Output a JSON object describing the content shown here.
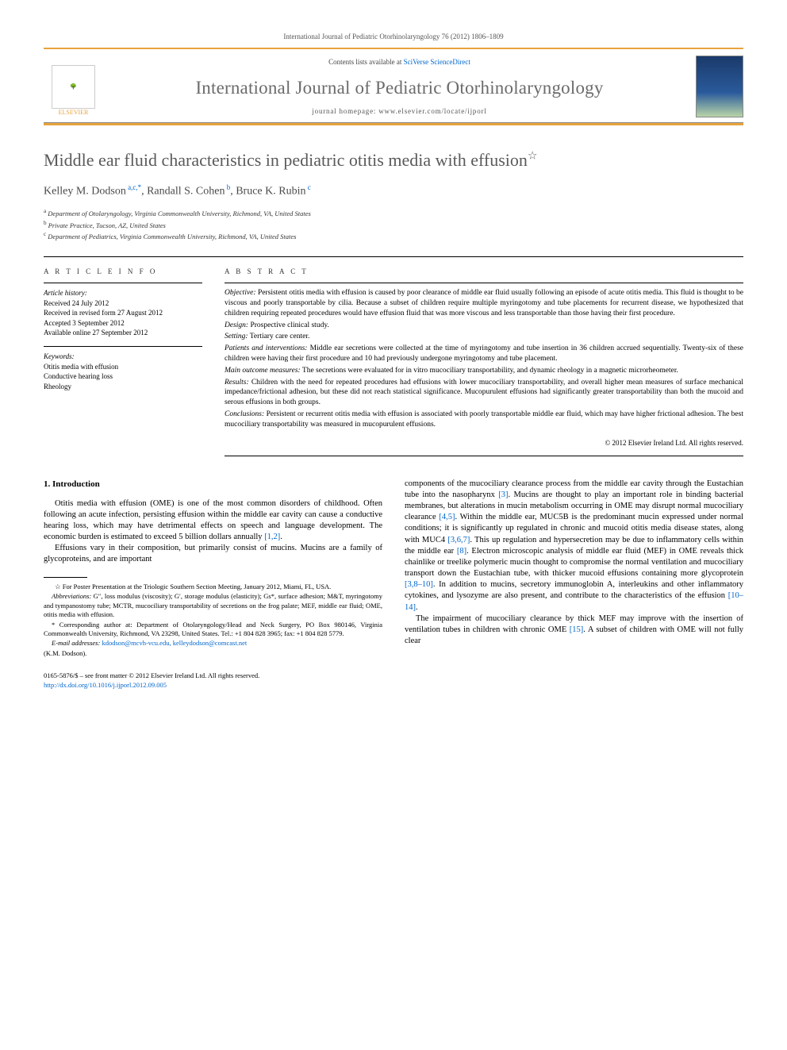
{
  "running_header": "International Journal of Pediatric Otorhinolaryngology 76 (2012) 1806–1809",
  "masthead": {
    "contents_prefix": "Contents lists available at ",
    "contents_link": "SciVerse ScienceDirect",
    "journal_title": "International Journal of Pediatric Otorhinolaryngology",
    "homepage_label": "journal homepage: ",
    "homepage_url": "www.elsevier.com/locate/ijporl",
    "publisher": "ELSEVIER"
  },
  "article": {
    "title": "Middle ear fluid characteristics in pediatric otitis media with effusion",
    "title_note_marker": "☆",
    "authors_html": "Kelley M. Dodson <sup>a,c,*</sup>, Randall S. Cohen <sup>b</sup>, Bruce K. Rubin <sup>c</sup>",
    "affiliations": [
      {
        "key": "a",
        "text": "Department of Otolaryngology, Virginia Commonwealth University, Richmond, VA, United States"
      },
      {
        "key": "b",
        "text": "Private Practice, Tucson, AZ, United States"
      },
      {
        "key": "c",
        "text": "Department of Pediatrics, Virginia Commonwealth University, Richmond, VA, United States"
      }
    ]
  },
  "article_info": {
    "heading": "A R T I C L E  I N F O",
    "history_label": "Article history:",
    "history": [
      "Received 24 July 2012",
      "Received in revised form 27 August 2012",
      "Accepted 3 September 2012",
      "Available online 27 September 2012"
    ],
    "keywords_label": "Keywords:",
    "keywords": [
      "Otitis media with effusion",
      "Conductive hearing loss",
      "Rheology"
    ]
  },
  "abstract": {
    "heading": "A B S T R A C T",
    "sections": [
      {
        "label": "Objective:",
        "text": "Persistent otitis media with effusion is caused by poor clearance of middle ear fluid usually following an episode of acute otitis media. This fluid is thought to be viscous and poorly transportable by cilia. Because a subset of children require multiple myringotomy and tube placements for recurrent disease, we hypothesized that children requiring repeated procedures would have effusion fluid that was more viscous and less transportable than those having their first procedure."
      },
      {
        "label": "Design:",
        "text": "Prospective clinical study."
      },
      {
        "label": "Setting:",
        "text": "Tertiary care center."
      },
      {
        "label": "Patients and interventions:",
        "text": "Middle ear secretions were collected at the time of myringotomy and tube insertion in 36 children accrued sequentially. Twenty-six of these children were having their first procedure and 10 had previously undergone myringotomy and tube placement."
      },
      {
        "label": "Main outcome measures:",
        "text": "The secretions were evaluated for in vitro mucociliary transportability, and dynamic rheology in a magnetic microrheometer."
      },
      {
        "label": "Results:",
        "text": "Children with the need for repeated procedures had effusions with lower mucociliary transportability, and overall higher mean measures of surface mechanical impedance/frictional adhesion, but these did not reach statistical significance. Mucopurulent effusions had significantly greater transportability than both the mucoid and serous effusions in both groups."
      },
      {
        "label": "Conclusions:",
        "text": "Persistent or recurrent otitis media with effusion is associated with poorly transportable middle ear fluid, which may have higher frictional adhesion. The best mucociliary transportability was measured in mucopurulent effusions."
      }
    ],
    "copyright": "© 2012 Elsevier Ireland Ltd. All rights reserved."
  },
  "body": {
    "section_number": "1.",
    "section_title": "Introduction",
    "col1": [
      "Otitis media with effusion (OME) is one of the most common disorders of childhood. Often following an acute infection, persisting effusion within the middle ear cavity can cause a conductive hearing loss, which may have detrimental effects on speech and language development. The economic burden is estimated to exceed 5 billion dollars annually [1,2].",
      "Effusions vary in their composition, but primarily consist of mucins. Mucins are a family of glycoproteins, and are important"
    ],
    "col2": [
      "components of the mucociliary clearance process from the middle ear cavity through the Eustachian tube into the nasopharynx [3]. Mucins are thought to play an important role in binding bacterial membranes, but alterations in mucin metabolism occurring in OME may disrupt normal mucociliary clearance [4,5]. Within the middle ear, MUC5B is the predominant mucin expressed under normal conditions; it is significantly up regulated in chronic and mucoid otitis media disease states, along with MUC4 [3,6,7]. This up regulation and hypersecretion may be due to inflammatory cells within the middle ear [8]. Electron microscopic analysis of middle ear fluid (MEF) in OME reveals thick chainlike or treelike polymeric mucin thought to compromise the normal ventilation and mucociliary transport down the Eustachian tube, with thicker mucoid effusions containing more glycoprotein [3,8–10]. In addition to mucins, secretory immunoglobin A, interleukins and other inflammatory cytokines, and lysozyme are also present, and contribute to the characteristics of the effusion [10–14].",
      "The impairment of mucociliary clearance by thick MEF may improve with the insertion of ventilation tubes in children with chronic OME [15]. A subset of children with OME will not fully clear"
    ]
  },
  "footnotes": {
    "star": "For Poster Presentation at the Triologic Southern Section Meeting, January 2012, Miami, FL, USA.",
    "abbrev_label": "Abbreviations:",
    "abbrev": "G″, loss modulus (viscosity); G′, storage modulus (elasticity); Gs*, surface adhesion; M&T, myringotomy and tympanostomy tube; MCTR, mucociliary transportability of secretions on the frog palate; MEF, middle ear fluid; OME, otitis media with effusion.",
    "corr_label": "* Corresponding author at:",
    "corr": "Department of Otolaryngology/Head and Neck Surgery, PO Box 980146, Virginia Commonwealth University, Richmond, VA 23298, United States. Tel.: +1 804 828 3965; fax: +1 804 828 5779.",
    "email_label": "E-mail addresses:",
    "emails": "kdodson@mcvh-vcu.edu, kelleydodson@comcast.net",
    "email_owner": "(K.M. Dodson)."
  },
  "page_footer": {
    "issn_line": "0165-5876/$ – see front matter © 2012 Elsevier Ireland Ltd. All rights reserved.",
    "doi": "http://dx.doi.org/10.1016/j.ijporl.2012.09.005"
  },
  "refs": {
    "r12": "[1,2]",
    "r3": "[3]",
    "r45": "[4,5]",
    "r367": "[3,6,7]",
    "r8": "[8]",
    "r3810": "[3,8–10]",
    "r1014": "[10–14]",
    "r15": "[15]"
  },
  "colors": {
    "accent": "#e8a33d",
    "link": "#0066cc",
    "title_gray": "#5a5a5a"
  }
}
